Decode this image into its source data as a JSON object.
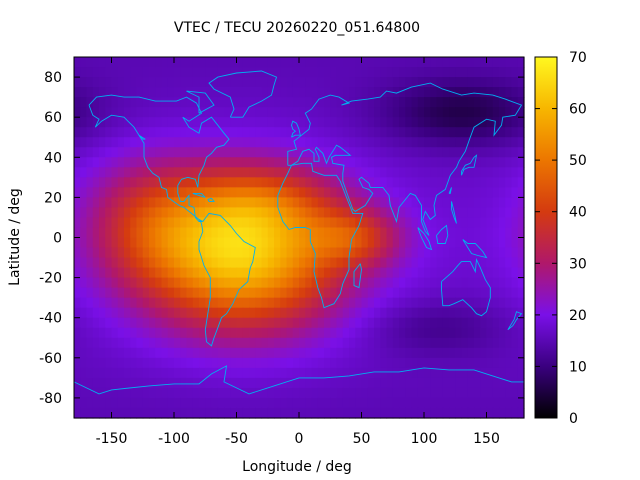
{
  "chart_data": {
    "type": "heatmap",
    "title": "VTEC / TECU 20260220_051.64800",
    "xlabel": "Longitude / deg",
    "ylabel": "Latitude / deg",
    "xlim": [
      -180,
      180
    ],
    "ylim": [
      -90,
      90
    ],
    "x_ticks": [
      -150,
      -100,
      -50,
      0,
      50,
      100,
      150
    ],
    "y_ticks": [
      -80,
      -60,
      -40,
      -20,
      0,
      20,
      40,
      60,
      80
    ],
    "x_tick_labels": [
      "-150",
      "-100",
      "-50",
      "0",
      "50",
      "100",
      "150"
    ],
    "y_tick_labels": [
      "-80",
      "-60",
      "-40",
      "-20",
      "0",
      "20",
      "40",
      "60",
      "80"
    ],
    "colorbar": {
      "range": [
        0,
        70
      ],
      "ticks": [
        0,
        10,
        20,
        30,
        40,
        50,
        60,
        70
      ],
      "tick_labels": [
        "0",
        "10",
        "20",
        "30",
        "40",
        "50",
        "60",
        "70"
      ],
      "colormap_stops": [
        {
          "value": 0,
          "color": "#000000"
        },
        {
          "value": 10,
          "color": "#3a007f"
        },
        {
          "value": 20,
          "color": "#7a10e8"
        },
        {
          "value": 30,
          "color": "#b0186a"
        },
        {
          "value": 40,
          "color": "#d43a10"
        },
        {
          "value": 50,
          "color": "#ec7600"
        },
        {
          "value": 60,
          "color": "#f7b600"
        },
        {
          "value": 70,
          "color": "#fff820"
        }
      ]
    },
    "field": {
      "background_tecu": 18,
      "components": [
        {
          "lon": -45,
          "lat": -8,
          "amplitude_tecu": 46,
          "sigma_lon": 55,
          "sigma_lat": 26
        },
        {
          "lon": -120,
          "lat": 8,
          "amplitude_tecu": 14,
          "sigma_lon": 35,
          "sigma_lat": 22
        },
        {
          "lon": 45,
          "lat": 0,
          "amplitude_tecu": 16,
          "sigma_lon": 25,
          "sigma_lat": 10
        },
        {
          "lon": -30,
          "lat": 18,
          "amplitude_tecu": 10,
          "sigma_lon": 40,
          "sigma_lat": 12
        },
        {
          "lon": 130,
          "lat": 62,
          "amplitude_tecu": -10,
          "sigma_lon": 45,
          "sigma_lat": 12
        },
        {
          "lon": 110,
          "lat": -45,
          "amplitude_tecu": -5,
          "sigma_lon": 40,
          "sigma_lat": 10
        }
      ]
    },
    "coastline_color": "#00b0f0"
  }
}
